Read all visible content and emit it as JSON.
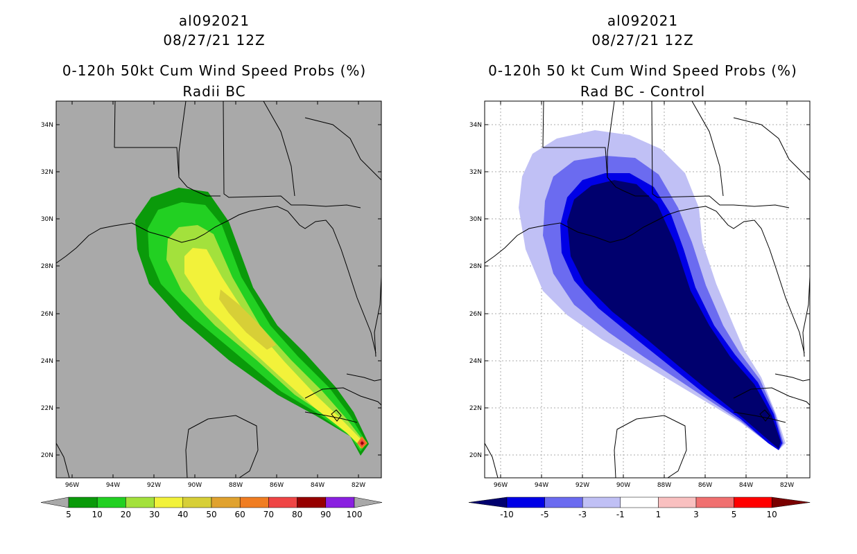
{
  "panels": [
    {
      "storm_id": "al092021",
      "datetime": "08/27/21 12Z",
      "title": "0-120h 50kt Cum Wind Speed Probs (%)",
      "subtitle": "Radii BC",
      "background_color": "#a9a9a9",
      "lat_labels": [
        "34N",
        "32N",
        "30N",
        "28N",
        "26N",
        "24N",
        "22N",
        "20N"
      ],
      "lon_labels": [
        "96W",
        "94W",
        "92W",
        "90W",
        "88W",
        "86W",
        "84W",
        "82W"
      ],
      "legend": {
        "colors": [
          "#0a9a0a",
          "#22d022",
          "#a3e13c",
          "#f2f23a",
          "#d7cf37",
          "#e0a22f",
          "#f07d22",
          "#ef4545",
          "#960000",
          "#8a20e0"
        ],
        "under_color": "#a9a9a9",
        "over_color": "#a9a9a9",
        "labels": [
          "5",
          "10",
          "20",
          "30",
          "40",
          "50",
          "60",
          "70",
          "80",
          "90",
          "100"
        ]
      }
    },
    {
      "storm_id": "al092021",
      "datetime": "08/27/21 12Z",
      "title": "0-120h 50 kt Cum Wind Speed Probs (%)",
      "subtitle": "Rad BC - Control",
      "background_color": "#ffffff",
      "lat_labels": [
        "34N",
        "32N",
        "30N",
        "28N",
        "26N",
        "24N",
        "22N",
        "20N"
      ],
      "lon_labels": [
        "96W",
        "94W",
        "92W",
        "90W",
        "88W",
        "86W",
        "84W",
        "82W"
      ],
      "legend": {
        "colors": [
          "#0000e6",
          "#6b6bf0",
          "#c0c0f5",
          "#ffffff",
          "#f9c0c0",
          "#f07070",
          "#ff0000"
        ],
        "under_color": "#00006e",
        "over_color": "#7a0000",
        "labels": [
          "-10",
          "-5",
          "-3",
          "-1",
          "1",
          "3",
          "5",
          "10"
        ]
      }
    }
  ]
}
